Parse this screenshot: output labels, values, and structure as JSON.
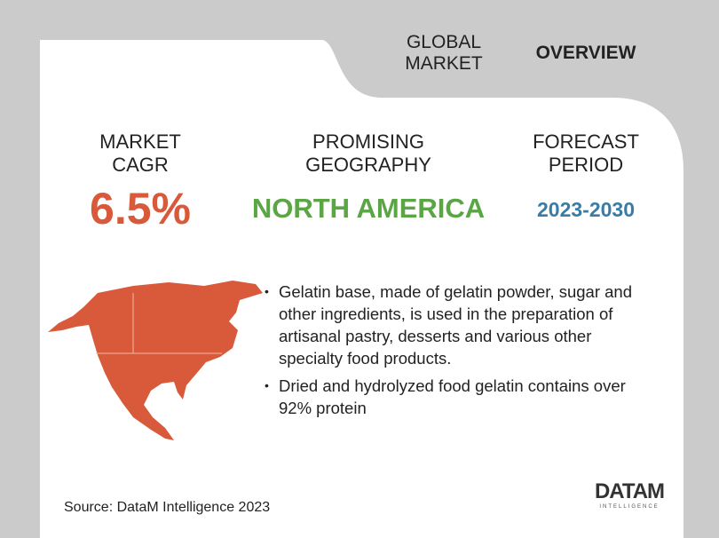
{
  "header": {
    "title_lines": [
      "GLOBAL",
      "MARKET"
    ],
    "overview": "OVERVIEW"
  },
  "stats": [
    {
      "label_lines": [
        "MARKET",
        "CAGR"
      ],
      "value": "6.5%"
    },
    {
      "label_lines": [
        "PROMISING",
        "GEOGRAPHY"
      ],
      "value": "NORTH AMERICA"
    },
    {
      "label_lines": [
        "FORECAST",
        "PERIOD"
      ],
      "value": "2023-2030"
    }
  ],
  "bullets": [
    "Gelatin base, made of gelatin powder, sugar and other ingredients, is used in the preparation of artisanal pastry, desserts and various other specialty food products.",
    "Dried and hydrolyzed food gelatin contains over 92% protein"
  ],
  "source": "Source: DataM Intelligence 2023",
  "logo": {
    "name": "DATAM",
    "tagline": "INTELLIGENCE"
  }
}
